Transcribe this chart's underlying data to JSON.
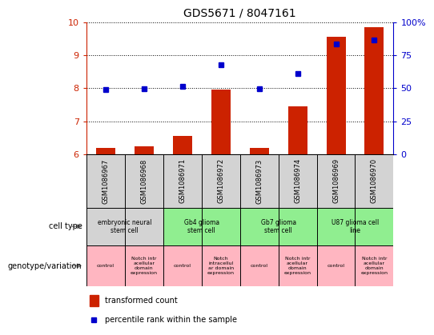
{
  "title": "GDS5671 / 8047161",
  "samples": [
    "GSM1086967",
    "GSM1086968",
    "GSM1086971",
    "GSM1086972",
    "GSM1086973",
    "GSM1086974",
    "GSM1086969",
    "GSM1086970"
  ],
  "transformed_counts": [
    6.2,
    6.25,
    6.55,
    7.95,
    6.2,
    7.45,
    9.55,
    9.85
  ],
  "percentile_ranks": [
    7.95,
    7.98,
    8.05,
    8.7,
    7.98,
    8.45,
    9.35,
    9.45
  ],
  "ylim_left": [
    6,
    10
  ],
  "ylim_right": [
    0,
    100
  ],
  "yticks_left": [
    6,
    7,
    8,
    9,
    10
  ],
  "yticks_right": [
    0,
    25,
    50,
    75,
    100
  ],
  "bar_color": "#CC2200",
  "dot_color": "#0000CC",
  "cell_types": [
    {
      "label": "embryonic neural\nstem cell",
      "span": [
        0,
        2
      ],
      "color": "#d3d3d3"
    },
    {
      "label": "Gb4 glioma\nstem cell",
      "span": [
        2,
        4
      ],
      "color": "#90ee90"
    },
    {
      "label": "Gb7 glioma\nstem cell",
      "span": [
        4,
        6
      ],
      "color": "#90ee90"
    },
    {
      "label": "U87 glioma cell\nline",
      "span": [
        6,
        8
      ],
      "color": "#90ee90"
    }
  ],
  "genotypes": [
    {
      "label": "control",
      "span": [
        0,
        1
      ],
      "color": "#ffb6c1"
    },
    {
      "label": "Notch intr\nacellular\ndomain\nexpression",
      "span": [
        1,
        2
      ],
      "color": "#ffb6c1"
    },
    {
      "label": "control",
      "span": [
        2,
        3
      ],
      "color": "#ffb6c1"
    },
    {
      "label": "Notch\nintracellul\nar domain\nexpression",
      "span": [
        3,
        4
      ],
      "color": "#ffb6c1"
    },
    {
      "label": "control",
      "span": [
        4,
        5
      ],
      "color": "#ffb6c1"
    },
    {
      "label": "Notch intr\nacellular\ndomain\nexpression",
      "span": [
        5,
        6
      ],
      "color": "#ffb6c1"
    },
    {
      "label": "control",
      "span": [
        6,
        7
      ],
      "color": "#ffb6c1"
    },
    {
      "label": "Notch intr\nacellular\ndomain\nexpression",
      "span": [
        7,
        8
      ],
      "color": "#ffb6c1"
    }
  ],
  "legend_bar_label": "transformed count",
  "legend_dot_label": "percentile rank within the sample",
  "cell_type_label": "cell type",
  "genotype_label": "genotype/variation",
  "left_axis_color": "#CC2200",
  "right_axis_color": "#0000CC",
  "sample_bg_color": "#d3d3d3"
}
